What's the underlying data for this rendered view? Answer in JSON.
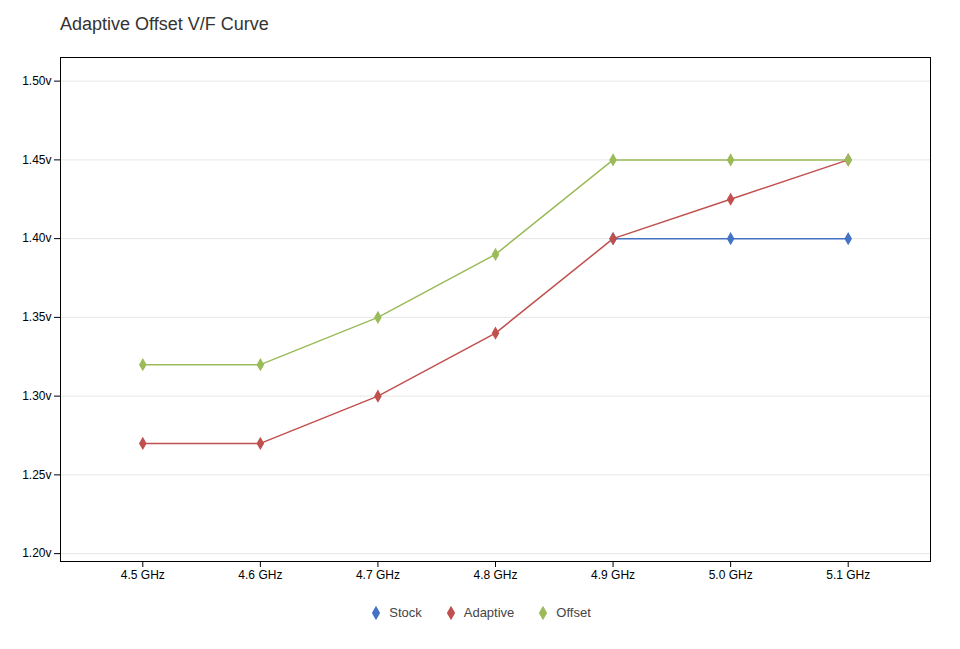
{
  "chart_data": {
    "type": "line",
    "title": "Adaptive Offset V/F Curve",
    "x": [
      4.5,
      4.6,
      4.7,
      4.8,
      4.9,
      5.0,
      5.1
    ],
    "xlim": [
      4.43,
      5.17
    ],
    "xticks": [
      {
        "value": 4.5,
        "label": "4.5 GHz"
      },
      {
        "value": 4.6,
        "label": "4.6 GHz"
      },
      {
        "value": 4.7,
        "label": "4.7 GHz"
      },
      {
        "value": 4.8,
        "label": "4.8 GHz"
      },
      {
        "value": 4.9,
        "label": "4.9 GHz"
      },
      {
        "value": 5.0,
        "label": "5.0 GHz"
      },
      {
        "value": 5.1,
        "label": "5.1 GHz"
      }
    ],
    "ylim": [
      1.195,
      1.515
    ],
    "yticks": [
      {
        "value": 1.2,
        "label": "1.20v"
      },
      {
        "value": 1.25,
        "label": "1.25v"
      },
      {
        "value": 1.3,
        "label": "1.30v"
      },
      {
        "value": 1.35,
        "label": "1.35v"
      },
      {
        "value": 1.4,
        "label": "1.40v"
      },
      {
        "value": 1.45,
        "label": "1.45v"
      },
      {
        "value": 1.5,
        "label": "1.50v"
      }
    ],
    "grid": true,
    "legend": "bottom",
    "marker": "diamond",
    "series": [
      {
        "name": "Stock",
        "color": "#4472C4",
        "values": [
          null,
          null,
          null,
          null,
          1.4,
          1.4,
          1.4
        ]
      },
      {
        "name": "Adaptive",
        "color": "#C0504D",
        "values": [
          1.27,
          1.27,
          1.3,
          1.34,
          1.4,
          1.425,
          1.45
        ]
      },
      {
        "name": "Offset",
        "color": "#9BBB59",
        "values": [
          1.32,
          1.32,
          1.35,
          1.39,
          1.45,
          1.45,
          1.45
        ]
      }
    ]
  }
}
